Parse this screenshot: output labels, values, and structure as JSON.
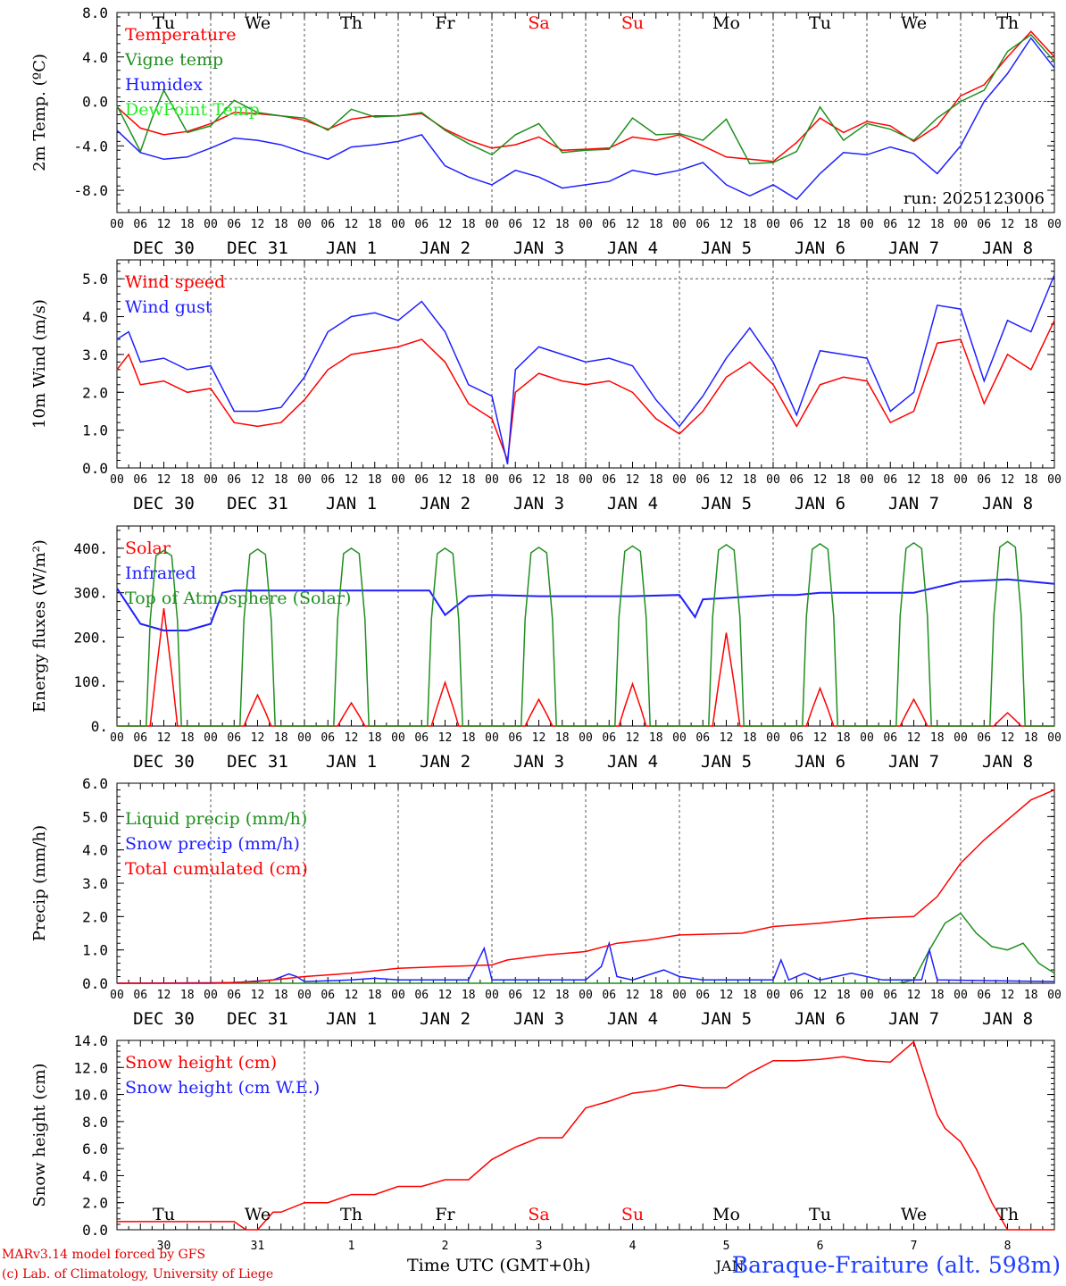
{
  "station": "Baraque-Fraiture (alt. 598m)",
  "credit": [
    "MARv3.14 model forced by GFS",
    "(c) Lab. of Climatology, University of Liege"
  ],
  "x_title": "Time UTC (GMT+0h)",
  "run_label": "run: 2025123006",
  "days": [
    "Tu",
    "We",
    "Th",
    "Fr",
    "Sa",
    "Su",
    "Mo",
    "Tu",
    "We",
    "Th"
  ],
  "weekend_days": [
    "Sa",
    "Su"
  ],
  "date_labels": [
    "DEC 30",
    "DEC 31",
    "JAN  1",
    "JAN  2",
    "JAN  3",
    "JAN  4",
    "JAN  5",
    "JAN  6",
    "JAN  7",
    "JAN  8"
  ],
  "hour_ticks": [
    "00",
    "06",
    "12",
    "18"
  ],
  "last_hour": "00",
  "bottom_dates": [
    "30",
    "31",
    "1",
    "2",
    "3",
    "4",
    "5",
    "6",
    "7",
    "8"
  ],
  "bottom_month_label": "JAN",
  "colors": {
    "red": "#ff0000",
    "green": "#1f8f1f",
    "blue": "#1f1fff",
    "light_green": "#22ee22"
  },
  "chart_data": [
    {
      "type": "line",
      "name": "temperature",
      "ylabel": "2m Temp. (ºC)",
      "ylim": [
        -10,
        8
      ],
      "yticks": [
        -8,
        -4,
        0,
        4,
        8
      ],
      "ytick_labels": [
        "-8.0",
        "-4.0",
        "0.0",
        "4.0",
        "8.0"
      ],
      "zero_dashed": true,
      "x_unit": "hours since DEC 30 00 UTC",
      "x_range": [
        0,
        240
      ],
      "series": [
        {
          "name": "Temperature",
          "color": "#ff0000",
          "x": [
            0,
            6,
            12,
            18,
            24,
            30,
            36,
            42,
            48,
            54,
            60,
            66,
            72,
            78,
            84,
            90,
            96,
            102,
            108,
            114,
            120,
            126,
            132,
            138,
            144,
            150,
            156,
            162,
            168,
            174,
            180,
            186,
            192,
            198,
            204,
            210,
            216,
            222,
            228,
            234,
            240
          ],
          "values": [
            -0.5,
            -2.4,
            -3,
            -2.7,
            -2,
            -1,
            -1.1,
            -1.3,
            -1.7,
            -2.5,
            -1.6,
            -1.3,
            -1.3,
            -1.1,
            -2.5,
            -3.5,
            -4.2,
            -3.9,
            -3.2,
            -4.4,
            -4.3,
            -4.2,
            -3.2,
            -3.5,
            -3.0,
            -4.0,
            -5.0,
            -5.2,
            -5.4,
            -3.7,
            -1.5,
            -2.8,
            -1.8,
            -2.2,
            -3.6,
            -2.2,
            0.5,
            1.5,
            4.0,
            6.3,
            4.0
          ]
        },
        {
          "name": "Vigne temp",
          "color": "#1f8f1f",
          "x": [
            0,
            6,
            9,
            12,
            18,
            24,
            30,
            36,
            42,
            48,
            54,
            60,
            66,
            72,
            78,
            84,
            90,
            96,
            102,
            108,
            114,
            120,
            126,
            132,
            138,
            144,
            150,
            156,
            162,
            168,
            174,
            180,
            186,
            192,
            198,
            204,
            210,
            216,
            222,
            228,
            234,
            240
          ],
          "values": [
            -0.4,
            -4.5,
            -1.5,
            1.0,
            -2.8,
            -2.2,
            0.1,
            -1.0,
            -1.3,
            -1.5,
            -2.6,
            -0.7,
            -1.4,
            -1.3,
            -1.0,
            -2.6,
            -3.8,
            -4.8,
            -3.0,
            -2.0,
            -4.6,
            -4.4,
            -4.3,
            -1.5,
            -3.0,
            -2.9,
            -3.5,
            -1.6,
            -5.6,
            -5.5,
            -4.5,
            -0.5,
            -3.5,
            -2.0,
            -2.5,
            -3.5,
            -1.5,
            0.0,
            1.0,
            4.5,
            6.0,
            3.6
          ]
        },
        {
          "name": "Humidex",
          "color": "#1f1fff",
          "x": [
            0,
            6,
            12,
            18,
            24,
            30,
            36,
            42,
            48,
            54,
            60,
            66,
            72,
            78,
            84,
            90,
            96,
            102,
            108,
            114,
            120,
            126,
            132,
            138,
            144,
            150,
            156,
            162,
            168,
            174,
            180,
            186,
            192,
            198,
            204,
            210,
            216,
            222,
            228,
            234,
            240
          ],
          "values": [
            -2.6,
            -4.6,
            -5.2,
            -5.0,
            -4.2,
            -3.3,
            -3.5,
            -3.9,
            -4.6,
            -5.2,
            -4.1,
            -3.9,
            -3.6,
            -3.0,
            -5.8,
            -6.8,
            -7.5,
            -6.2,
            -6.8,
            -7.8,
            -7.5,
            -7.2,
            -6.2,
            -6.6,
            -6.2,
            -5.5,
            -7.5,
            -8.5,
            -7.5,
            -8.8,
            -6.5,
            -4.6,
            -4.8,
            -4.1,
            -4.7,
            -6.5,
            -4.0,
            0.0,
            2.5,
            5.7,
            3.0
          ]
        },
        {
          "name": "DewPoint Temp",
          "color": "#22ee22",
          "x": [],
          "values": []
        }
      ]
    },
    {
      "type": "line",
      "name": "wind",
      "ylabel": "10m Wind (m/s)",
      "ylim": [
        0,
        5.5
      ],
      "yticks": [
        0,
        1,
        2,
        3,
        4,
        5
      ],
      "ytick_labels": [
        "0.0",
        "1.0",
        "2.0",
        "3.0",
        "4.0",
        "5.0"
      ],
      "dashed_line_at": 5.0,
      "x_unit": "hours since DEC 30 00 UTC",
      "x_range": [
        0,
        240
      ],
      "series": [
        {
          "name": "Wind speed",
          "color": "#ff0000",
          "x": [
            0,
            3,
            6,
            12,
            18,
            24,
            30,
            36,
            42,
            48,
            54,
            60,
            66,
            72,
            78,
            84,
            90,
            96,
            100,
            102,
            108,
            114,
            120,
            126,
            132,
            138,
            144,
            150,
            156,
            162,
            168,
            174,
            180,
            186,
            192,
            198,
            204,
            210,
            216,
            222,
            228,
            234,
            240
          ],
          "values": [
            2.6,
            3.0,
            2.2,
            2.3,
            2.0,
            2.1,
            1.2,
            1.1,
            1.2,
            1.8,
            2.6,
            3.0,
            3.1,
            3.2,
            3.4,
            2.8,
            1.7,
            1.3,
            0.2,
            2.0,
            2.5,
            2.3,
            2.2,
            2.3,
            2.0,
            1.3,
            0.9,
            1.5,
            2.4,
            2.8,
            2.2,
            1.1,
            2.2,
            2.4,
            2.3,
            1.2,
            1.5,
            3.3,
            3.4,
            1.7,
            3.0,
            2.6,
            3.9
          ]
        },
        {
          "name": "Wind gust",
          "color": "#1f1fff",
          "x": [
            0,
            3,
            6,
            12,
            18,
            24,
            30,
            36,
            42,
            48,
            54,
            60,
            66,
            72,
            78,
            84,
            90,
            96,
            100,
            102,
            108,
            114,
            120,
            126,
            132,
            138,
            144,
            150,
            156,
            162,
            168,
            174,
            180,
            186,
            192,
            198,
            204,
            210,
            216,
            222,
            228,
            234,
            240
          ],
          "values": [
            3.4,
            3.6,
            2.8,
            2.9,
            2.6,
            2.7,
            1.5,
            1.5,
            1.6,
            2.4,
            3.6,
            4.0,
            4.1,
            3.9,
            4.4,
            3.6,
            2.2,
            1.9,
            0.1,
            2.6,
            3.2,
            3.0,
            2.8,
            2.9,
            2.7,
            1.8,
            1.1,
            1.9,
            2.9,
            3.7,
            2.8,
            1.4,
            3.1,
            3.0,
            2.9,
            1.5,
            2.0,
            4.3,
            4.2,
            2.3,
            3.9,
            3.6,
            5.1
          ]
        }
      ]
    },
    {
      "type": "line",
      "name": "energy",
      "ylabel": "Energy fluxes (W/m²)",
      "ylim": [
        0,
        450
      ],
      "yticks": [
        0,
        100,
        200,
        300,
        400
      ],
      "ytick_labels": [
        "0.",
        "100.",
        "200.",
        "300.",
        "400."
      ],
      "x_unit": "hours since DEC 30 00 UTC",
      "x_range": [
        0,
        240
      ],
      "series": [
        {
          "name": "Solar",
          "color": "#ff0000",
          "peaks": [
            265,
            70,
            52,
            98,
            60,
            95,
            210,
            85,
            60,
            30
          ]
        },
        {
          "name": "Infrared",
          "color": "#1f1fff",
          "x": [
            0,
            6,
            12,
            18,
            24,
            27,
            30,
            36,
            42,
            48,
            60,
            72,
            80,
            84,
            90,
            96,
            108,
            120,
            132,
            144,
            148,
            150,
            156,
            168,
            174,
            180,
            192,
            204,
            216,
            228,
            240
          ],
          "values": [
            310,
            230,
            215,
            215,
            230,
            300,
            305,
            305,
            305,
            305,
            305,
            305,
            305,
            250,
            292,
            295,
            292,
            292,
            292,
            295,
            245,
            285,
            288,
            295,
            295,
            300,
            300,
            300,
            325,
            330,
            320
          ]
        },
        {
          "name": "Top of Atmosphere (Solar)",
          "color": "#1f8f1f",
          "peaks": [
            395,
            398,
            400,
            400,
            402,
            405,
            408,
            410,
            412,
            415
          ]
        }
      ],
      "daylight_hours": [
        7.5,
        16.5
      ]
    },
    {
      "type": "line",
      "name": "precip",
      "ylabel": "Precip (mm/h)",
      "ylim": [
        0,
        6
      ],
      "yticks": [
        0,
        1,
        2,
        3,
        4,
        5,
        6
      ],
      "ytick_labels": [
        "0.0",
        "1.0",
        "2.0",
        "3.0",
        "4.0",
        "5.0",
        "6.0"
      ],
      "x_unit": "hours since DEC 30 00 UTC",
      "x_range": [
        0,
        240
      ],
      "series": [
        {
          "name": "Liquid precip (mm/h)",
          "color": "#1f8f1f",
          "x": [
            0,
            200,
            204,
            208,
            212,
            216,
            220,
            224,
            228,
            232,
            236,
            240
          ],
          "values": [
            0,
            0,
            0.1,
            1.0,
            1.8,
            2.1,
            1.5,
            1.1,
            1.0,
            1.2,
            0.6,
            0.3
          ]
        },
        {
          "name": "Snow precip (mm/h)",
          "color": "#1f1fff",
          "x": [
            0,
            30,
            40,
            44,
            46,
            48,
            60,
            66,
            72,
            90,
            94,
            96,
            100,
            120,
            124,
            126,
            128,
            132,
            140,
            144,
            150,
            168,
            170,
            172,
            176,
            180,
            188,
            196,
            206,
            208,
            210,
            240
          ],
          "values": [
            0,
            0.02,
            0.1,
            0.28,
            0.2,
            0.05,
            0.1,
            0.15,
            0.1,
            0.1,
            1.05,
            0.1,
            0.1,
            0.1,
            0.5,
            1.2,
            0.2,
            0.1,
            0.4,
            0.2,
            0.1,
            0.1,
            0.7,
            0.1,
            0.3,
            0.1,
            0.3,
            0.1,
            0.1,
            1.0,
            0.1,
            0.05
          ]
        },
        {
          "name": "Total cumulated (cm)",
          "color": "#ff0000",
          "x": [
            0,
            24,
            36,
            48,
            60,
            72,
            84,
            96,
            100,
            110,
            120,
            128,
            136,
            144,
            160,
            168,
            180,
            192,
            204,
            210,
            216,
            222,
            228,
            234,
            240
          ],
          "values": [
            0,
            0,
            0.05,
            0.2,
            0.3,
            0.45,
            0.5,
            0.55,
            0.7,
            0.85,
            0.95,
            1.2,
            1.3,
            1.45,
            1.5,
            1.7,
            1.8,
            1.95,
            2.0,
            2.6,
            3.6,
            4.3,
            4.9,
            5.5,
            5.8
          ]
        }
      ]
    },
    {
      "type": "line",
      "name": "snow",
      "ylabel": "Snow height (cm)",
      "ylim": [
        0,
        14
      ],
      "yticks": [
        0,
        2,
        4,
        6,
        8,
        10,
        12,
        14
      ],
      "ytick_labels": [
        "0.0",
        "2.0",
        "4.0",
        "6.0",
        "8.0",
        "10.0",
        "12.0",
        "14.0"
      ],
      "x_unit": "hours since DEC 30 00 UTC",
      "x_range": [
        0,
        240
      ],
      "series": [
        {
          "name": "Snow height (cm)",
          "color": "#ff0000",
          "x": [
            0,
            30,
            33,
            36,
            40,
            42,
            48,
            54,
            60,
            66,
            72,
            78,
            84,
            90,
            96,
            102,
            108,
            114,
            120,
            126,
            132,
            138,
            144,
            150,
            156,
            162,
            168,
            174,
            180,
            186,
            192,
            198,
            204,
            210,
            212,
            216,
            220,
            224,
            228,
            232,
            240
          ],
          "values": [
            0.6,
            0.6,
            0,
            0,
            1.3,
            1.3,
            2.0,
            2.0,
            2.6,
            2.6,
            3.2,
            3.2,
            3.7,
            3.7,
            5.2,
            6.1,
            6.8,
            6.8,
            9.0,
            9.5,
            10.1,
            10.3,
            10.7,
            10.5,
            10.5,
            11.6,
            12.5,
            12.5,
            12.6,
            12.8,
            12.5,
            12.4,
            13.9,
            8.5,
            7.5,
            6.5,
            4.5,
            2.0,
            0,
            0,
            0
          ]
        },
        {
          "name": "Snow height (cm W.E.)",
          "color": "#1f1fff",
          "x": [],
          "values": []
        }
      ]
    }
  ]
}
